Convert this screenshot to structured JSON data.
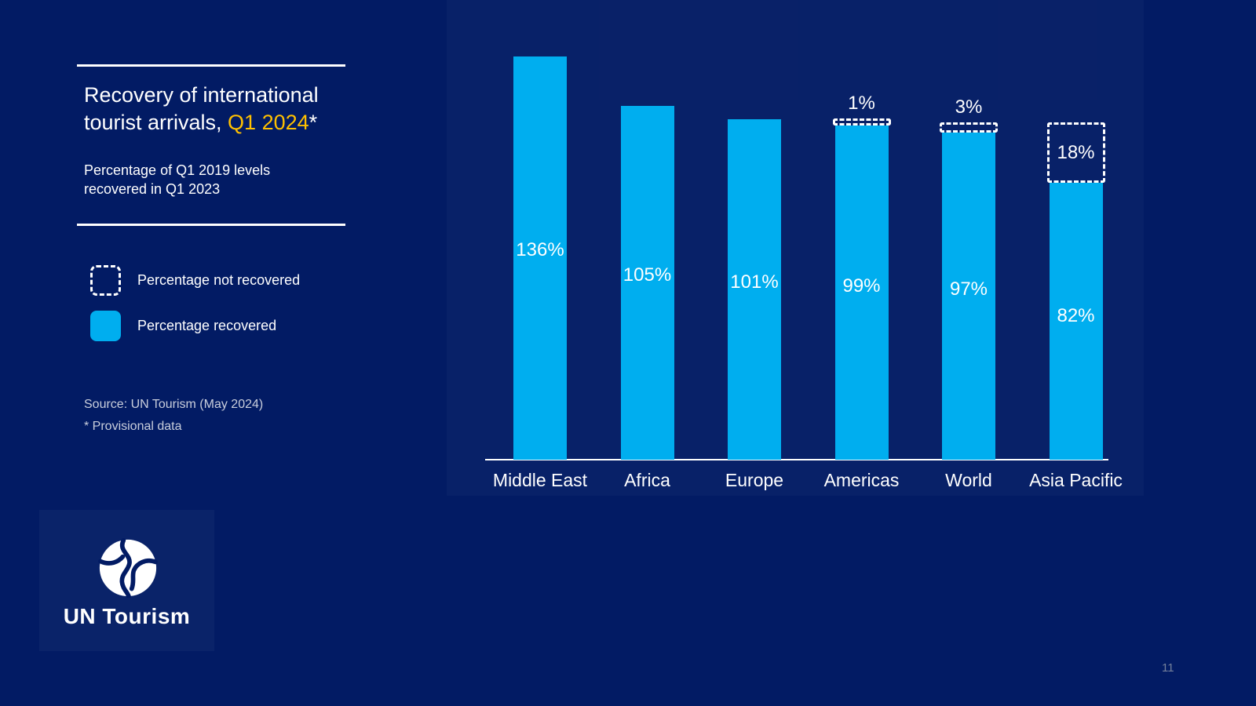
{
  "slide": {
    "page_number": "11",
    "background_color": "#021B64",
    "accent_cyan": "#00AEEF",
    "accent_yellow": "#FFC000"
  },
  "header": {
    "title_line1": "Recovery of international",
    "title_line2_prefix": "tourist arrivals, ",
    "title_line2_highlight": "Q1 2024",
    "title_line2_suffix": "*",
    "subtitle_line1": "Percentage of Q1 2019 levels",
    "subtitle_line2": "recovered in Q1 2023"
  },
  "legend": {
    "not_recovered_label": "Percentage not recovered",
    "recovered_label": "Percentage recovered"
  },
  "footnotes": {
    "source": "Source: UN Tourism (May 2024)",
    "provisional": "* Provisional data"
  },
  "logo": {
    "wordmark": "UN Tourism"
  },
  "chart_data": {
    "type": "bar",
    "stacked": true,
    "categories": [
      "Middle East",
      "Africa",
      "Europe",
      "Americas",
      "World",
      "Asia Pacific"
    ],
    "series": [
      {
        "name": "Percentage recovered",
        "color": "#00AEEF",
        "values": [
          136,
          105,
          101,
          99,
          97,
          82
        ],
        "data_labels": [
          "136%",
          "105%",
          "101%",
          "99%",
          "97%",
          "82%"
        ]
      },
      {
        "name": "Percentage not recovered",
        "style": "dashed_outline",
        "values": [
          0,
          0,
          0,
          1,
          3,
          18
        ],
        "data_labels": [
          "",
          "",
          "",
          "1%",
          "3%",
          "18%"
        ]
      }
    ],
    "unit": "%",
    "reference_level": 100,
    "ylim": [
      0,
      140
    ],
    "gridlines": false,
    "y_axis_visible": false,
    "legend_position": "left"
  }
}
